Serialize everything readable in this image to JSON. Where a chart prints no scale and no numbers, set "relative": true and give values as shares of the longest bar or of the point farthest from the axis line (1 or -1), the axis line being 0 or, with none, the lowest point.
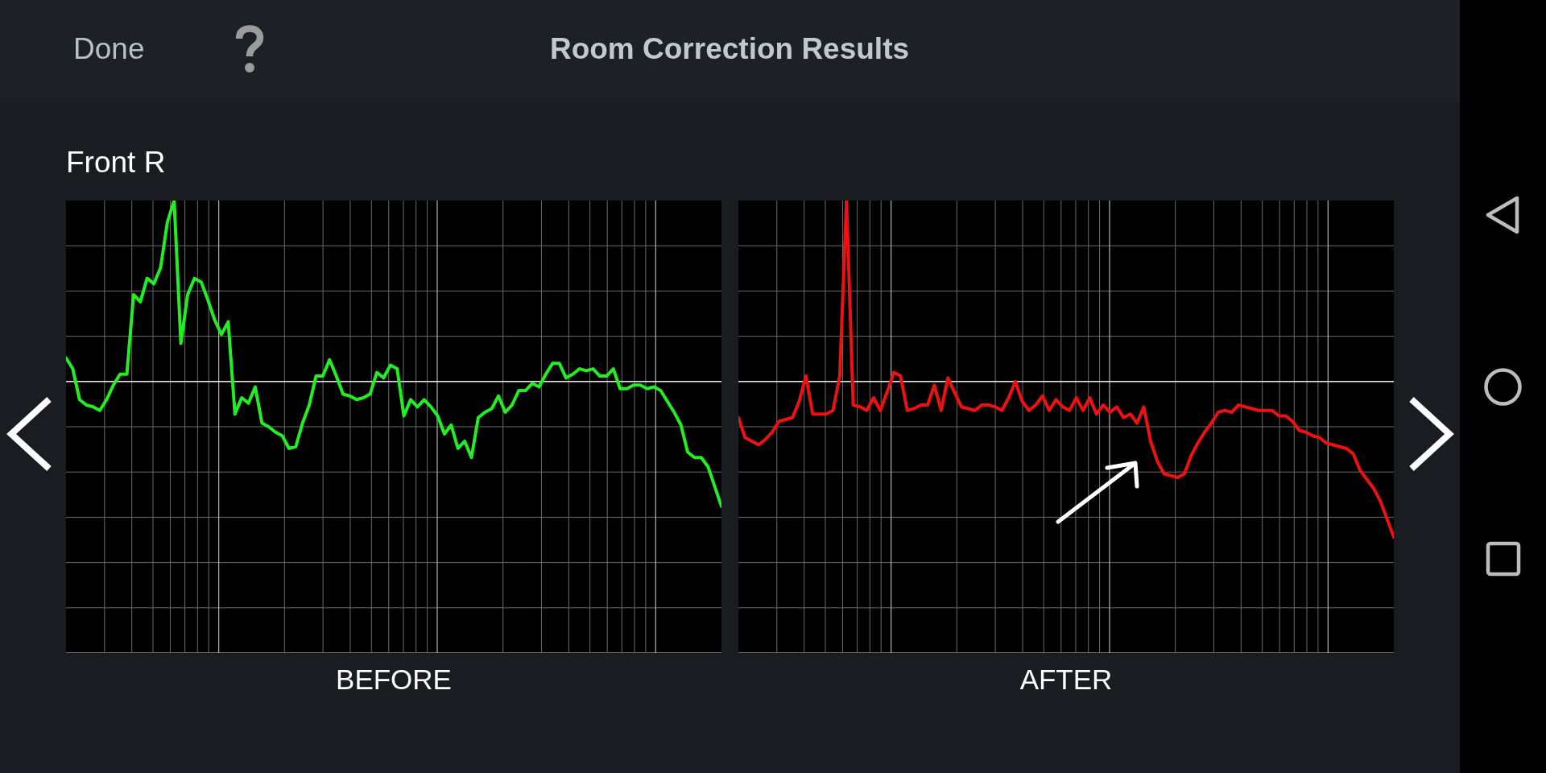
{
  "chart_data": [
    {
      "type": "line",
      "title": "Room Correction Results",
      "subtitle": "Front R",
      "annotations": [
        "Done"
      ],
      "xlabel": "BEFORE",
      "relative": true,
      "grid": true,
      "marker": "none",
      "categories": [
        null,
        null,
        null,
        null,
        null,
        null,
        null,
        null,
        null,
        null,
        null,
        null,
        null,
        null,
        null,
        null,
        null,
        null,
        null,
        null,
        null,
        null,
        null,
        null,
        null,
        null,
        null,
        null,
        null,
        null,
        null,
        null,
        null,
        null,
        null,
        null,
        null,
        null,
        null,
        null,
        null,
        null,
        null,
        null,
        null,
        null,
        null,
        null,
        null,
        null,
        null,
        null,
        null,
        null,
        null,
        null,
        null,
        null,
        null,
        null,
        null,
        null,
        null,
        null,
        null,
        null,
        null,
        null,
        null,
        null,
        null,
        null,
        null,
        null,
        null,
        null,
        null,
        null,
        null,
        null,
        null,
        null,
        null,
        null,
        null,
        null,
        null,
        null,
        null,
        null,
        null,
        null,
        null,
        null,
        null,
        null,
        null,
        null
      ],
      "series": [
        {
          "color": "#22ee22",
          "values": [
            0.13,
            0.07,
            -0.1,
            -0.13,
            -0.14,
            -0.16,
            -0.1,
            -0.02,
            0.04,
            0.04,
            0.48,
            0.44,
            0.57,
            0.54,
            0.63,
            0.88,
            1,
            0.21,
            0.48,
            0.57,
            0.55,
            0.45,
            0.34,
            0.26,
            0.33,
            -0.18,
            -0.09,
            -0.12,
            -0.03,
            -0.23,
            -0.25,
            -0.28,
            -0.3,
            -0.37,
            -0.36,
            -0.23,
            -0.13,
            0.03,
            0.03,
            0.12,
            0.03,
            -0.07,
            -0.08,
            -0.1,
            -0.09,
            -0.07,
            0.05,
            0.02,
            0.09,
            0.07,
            -0.19,
            -0.1,
            -0.14,
            -0.1,
            -0.14,
            -0.19,
            -0.29,
            -0.24,
            -0.37,
            -0.33,
            -0.42,
            -0.2,
            -0.17,
            -0.15,
            -0.08,
            -0.17,
            -0.13,
            -0.05,
            -0.05,
            -0.01,
            -0.03,
            0.04,
            0.1,
            0.1,
            0.02,
            0.04,
            0.07,
            0.06,
            0.07,
            0.03,
            0.03,
            0.07,
            -0.04,
            -0.04,
            -0.02,
            -0.02,
            -0.04,
            -0.03,
            -0.05,
            -0.11,
            -0.17,
            -0.24,
            -0.39,
            -0.42,
            -0.42,
            -0.47,
            -0.58,
            -0.69
          ]
        }
      ]
    },
    {
      "type": "line",
      "xlabel": "AFTER",
      "relative": true,
      "grid": true,
      "marker": "none",
      "categories": [
        null,
        null,
        null,
        null,
        null,
        null,
        null,
        null,
        null,
        null,
        null,
        null,
        null,
        null,
        null,
        null,
        null,
        null,
        null,
        null,
        null,
        null,
        null,
        null,
        null,
        null,
        null,
        null,
        null,
        null,
        null,
        null,
        null,
        null,
        null,
        null,
        null,
        null,
        null,
        null,
        null,
        null,
        null,
        null,
        null,
        null,
        null,
        null,
        null,
        null,
        null,
        null,
        null,
        null,
        null,
        null,
        null,
        null,
        null,
        null,
        null,
        null,
        null,
        null,
        null,
        null,
        null,
        null,
        null,
        null,
        null,
        null,
        null,
        null,
        null,
        null,
        null,
        null,
        null,
        null,
        null,
        null,
        null,
        null,
        null,
        null,
        null,
        null,
        null,
        null,
        null,
        null,
        null,
        null,
        null,
        null,
        null,
        null
      ],
      "series": [
        {
          "color": "#ee1111",
          "values": [
            -0.2,
            -0.31,
            -0.33,
            -0.35,
            -0.32,
            -0.28,
            -0.22,
            -0.21,
            -0.2,
            -0.11,
            0.03,
            -0.18,
            -0.18,
            -0.18,
            -0.16,
            0.03,
            1,
            -0.13,
            -0.14,
            -0.16,
            -0.09,
            -0.16,
            -0.06,
            0.05,
            0.03,
            -0.16,
            -0.15,
            -0.13,
            -0.13,
            -0.02,
            -0.16,
            0.02,
            -0.06,
            -0.14,
            -0.15,
            -0.16,
            -0.13,
            -0.13,
            -0.14,
            -0.16,
            -0.09,
            0,
            -0.11,
            -0.16,
            -0.13,
            -0.08,
            -0.16,
            -0.1,
            -0.14,
            -0.16,
            -0.09,
            -0.16,
            -0.09,
            -0.18,
            -0.13,
            -0.17,
            -0.14,
            -0.2,
            -0.18,
            -0.23,
            -0.14,
            -0.33,
            -0.44,
            -0.51,
            -0.52,
            -0.53,
            -0.51,
            -0.41,
            -0.34,
            -0.28,
            -0.23,
            -0.17,
            -0.16,
            -0.17,
            -0.13,
            -0.14,
            -0.15,
            -0.16,
            -0.16,
            -0.16,
            -0.19,
            -0.19,
            -0.22,
            -0.27,
            -0.28,
            -0.3,
            -0.31,
            -0.34,
            -0.35,
            -0.36,
            -0.37,
            -0.4,
            -0.49,
            -0.54,
            -0.59,
            -0.66,
            -0.76,
            -0.86
          ]
        }
      ]
    }
  ]
}
